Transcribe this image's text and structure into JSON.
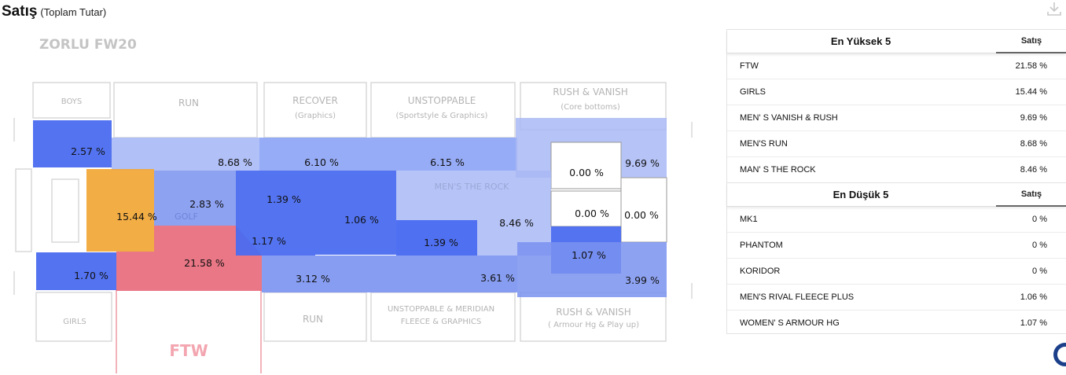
{
  "header": {
    "title": "Satış",
    "subtitle": "(Toplam Tutar)"
  },
  "store": {
    "name": "ZORLU FW20",
    "bg_labels": [
      {
        "text": "BOYS"
      },
      {
        "text": "RUN"
      },
      {
        "text": "RECOVER"
      },
      {
        "text": "(Graphics)"
      },
      {
        "text": "UNSTOPPABLE"
      },
      {
        "text": "(Sportstyle & Graphics)"
      },
      {
        "text": "RUSH & VANISH"
      },
      {
        "text": "(Core bottoms)"
      },
      {
        "text": "GIRLS"
      },
      {
        "text": "RUN"
      },
      {
        "text": "UNSTOPPABLE & MERIDIAN"
      },
      {
        "text": "FLEECE & GRAPHICS"
      },
      {
        "text": "RUSH & VANISH"
      },
      {
        "text": "( Armour Hg & Play up)"
      },
      {
        "text": "FTW"
      },
      {
        "text": "MEN'S THE ROCK"
      },
      {
        "text": "GOLF"
      }
    ],
    "zones": [
      {
        "label": "2.57 %",
        "value": 2.57,
        "color": "#4a6cf0"
      },
      {
        "label": "8.68 %",
        "value": 8.68,
        "color": "#a9b9f5"
      },
      {
        "label": "6.10 %",
        "value": 6.1,
        "color": "#8ca3f5"
      },
      {
        "label": "6.15 %",
        "value": 6.15,
        "color": "#8ca3f5"
      },
      {
        "label": "9.69 %",
        "value": 9.69,
        "color": "#a9b9f5"
      },
      {
        "label": "0.00 %",
        "value": 0.0,
        "color": "#ffffff"
      },
      {
        "label": "15.44 %",
        "value": 15.44,
        "color": "#f2a93b"
      },
      {
        "label": "2.83 %",
        "value": 2.83,
        "color": "#7a92f0"
      },
      {
        "label": "1.39 %",
        "value": 1.39,
        "color": "#4a6cf0"
      },
      {
        "label": "1.06 %",
        "value": 1.06,
        "color": "#4a6cf0"
      },
      {
        "label": "8.46 %",
        "value": 8.46,
        "color": "#a9b9f5"
      },
      {
        "label": "0.00 %",
        "value": 0.0,
        "color": "#ffffff"
      },
      {
        "label": "0.00 %",
        "value": 0.0,
        "color": "#ffffff"
      },
      {
        "label": "21.58 %",
        "value": 21.58,
        "color": "#e8707f"
      },
      {
        "label": "1.17 %",
        "value": 1.17,
        "color": "#4a6cf0"
      },
      {
        "label": "1.39 %",
        "value": 1.39,
        "color": "#4a6cf0"
      },
      {
        "label": "1.07 %",
        "value": 1.07,
        "color": "#4a6cf0"
      },
      {
        "label": "1.70 %",
        "value": 1.7,
        "color": "#4a6cf0"
      },
      {
        "label": "3.12 %",
        "value": 3.12,
        "color": "#7a92f0"
      },
      {
        "label": "3.61 %",
        "value": 3.61,
        "color": "#7a92f0"
      },
      {
        "label": "3.99 %",
        "value": 3.99,
        "color": "#7a92f0"
      }
    ]
  },
  "top5": {
    "title": "En Yüksek 5",
    "col": "Satış",
    "rows": [
      {
        "name": "FTW",
        "value": "21.58 %"
      },
      {
        "name": "GIRLS",
        "value": "15.44 %"
      },
      {
        "name": "MEN' S VANISH & RUSH",
        "value": "9.69 %"
      },
      {
        "name": "MEN'S RUN",
        "value": "8.68 %"
      },
      {
        "name": "MAN' S THE ROCK",
        "value": "8.46 %"
      }
    ]
  },
  "bottom5": {
    "title": "En Düşük 5",
    "col": "Satış",
    "rows": [
      {
        "name": "MK1",
        "value": "0 %"
      },
      {
        "name": "PHANTOM",
        "value": "0 %"
      },
      {
        "name": "KORIDOR",
        "value": "0 %"
      },
      {
        "name": "MEN'S RIVAL FLEECE PLUS",
        "value": "1.06 %"
      },
      {
        "name": "WOMEN' S ARMOUR HG",
        "value": "1.07 %"
      }
    ]
  },
  "icons": {
    "download": "download-icon"
  }
}
